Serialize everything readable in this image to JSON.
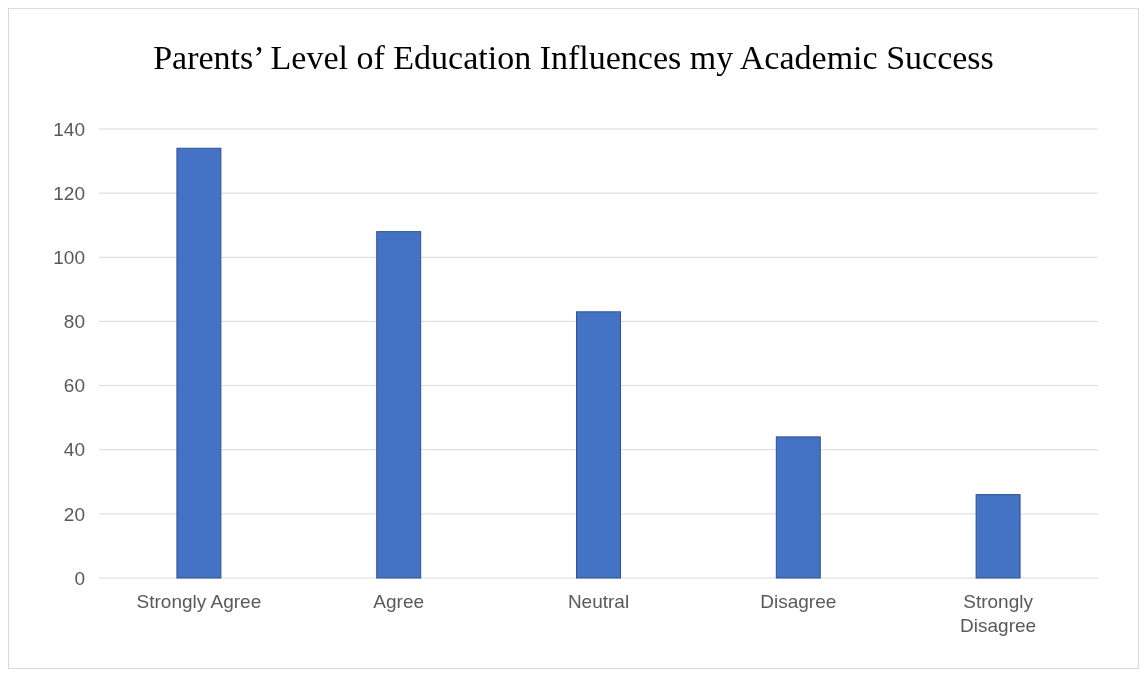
{
  "chart_data": {
    "type": "bar",
    "title": "Parents’ Level of Education Influences my Academic Success",
    "categories": [
      "Strongly Agree",
      "Agree",
      "Neutral",
      "Disagree",
      "Strongly Disagree"
    ],
    "values": [
      134,
      108,
      83,
      44,
      26
    ],
    "color": "#4472c4",
    "ylim": [
      0,
      140
    ],
    "yticks": [
      0,
      20,
      40,
      60,
      80,
      100,
      120,
      140
    ],
    "grid": true
  }
}
